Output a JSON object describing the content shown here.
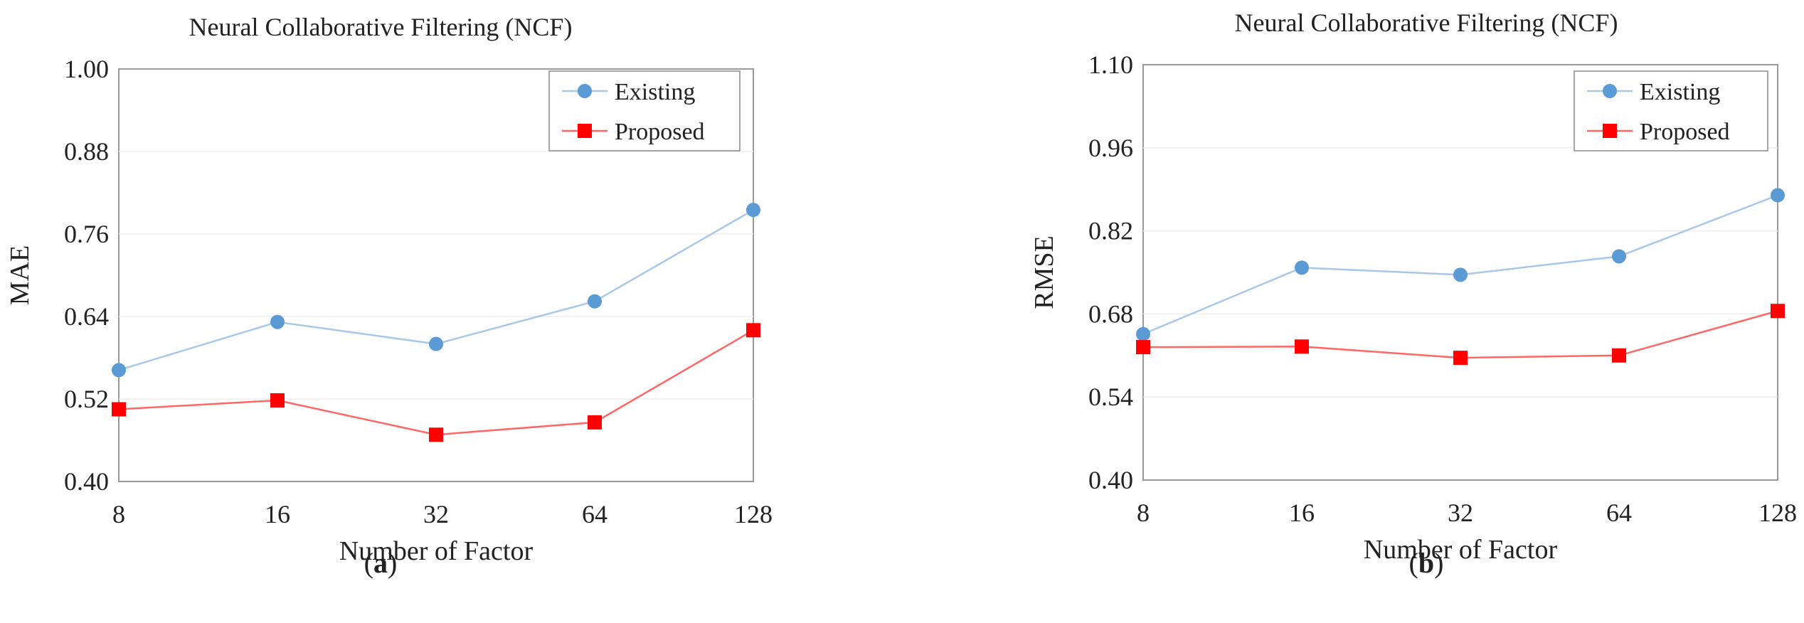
{
  "figure": {
    "panel_labels": [
      {
        "open": "(",
        "letter": "a",
        "close": ")"
      },
      {
        "open": "(",
        "letter": "b",
        "close": ")"
      }
    ]
  },
  "colors": {
    "existing_line": "#a8c8ea",
    "existing_marker": "#5b9bd5",
    "proposed_line": "#ff6666",
    "proposed_marker": "#ff0000",
    "axis": "#999999",
    "grid": "#eeeeee"
  },
  "chart_data": [
    {
      "type": "line",
      "title": "Neural Collaborative Filtering (NCF)",
      "xlabel": "Number of Factor",
      "ylabel": "MAE",
      "categories": [
        "8",
        "16",
        "32",
        "64",
        "128"
      ],
      "ylim": [
        0.4,
        1.0
      ],
      "yticks": [
        "0.40",
        "0.52",
        "0.64",
        "0.76",
        "0.88",
        "1.00"
      ],
      "grid": true,
      "legend_position": "top-right",
      "series": [
        {
          "name": "Existing",
          "marker": "circle",
          "values": [
            0.562,
            0.632,
            0.6,
            0.662,
            0.795
          ]
        },
        {
          "name": "Proposed",
          "marker": "square",
          "values": [
            0.505,
            0.518,
            0.468,
            0.486,
            0.62
          ]
        }
      ]
    },
    {
      "type": "line",
      "title": "Neural Collaborative Filtering (NCF)",
      "xlabel": "Number of Factor",
      "ylabel": "RMSE",
      "categories": [
        "8",
        "16",
        "32",
        "64",
        "128"
      ],
      "ylim": [
        0.4,
        1.1
      ],
      "yticks": [
        "0.40",
        "0.54",
        "0.68",
        "0.82",
        "0.96",
        "1.10"
      ],
      "grid": true,
      "legend_position": "top-right",
      "series": [
        {
          "name": "Existing",
          "marker": "circle",
          "values": [
            0.646,
            0.758,
            0.746,
            0.777,
            0.88
          ]
        },
        {
          "name": "Proposed",
          "marker": "square",
          "values": [
            0.624,
            0.625,
            0.606,
            0.61,
            0.685
          ]
        }
      ]
    }
  ]
}
